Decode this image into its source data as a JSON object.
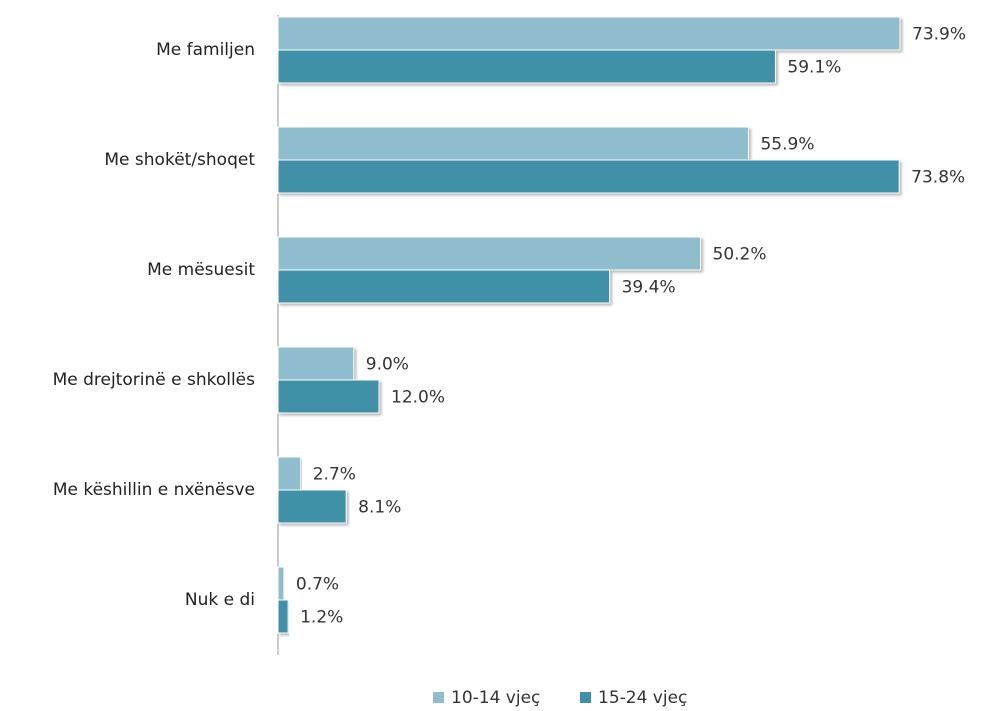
{
  "chart_data": {
    "type": "bar",
    "orientation": "horizontal",
    "categories": [
      "Me familjen",
      "Me shokët/shoqet",
      "Me mësuesit",
      "Me drejtorinë e shkollës",
      "Me këshillin e nxënësve",
      "Nuk e di"
    ],
    "series": [
      {
        "name": "10-14 vjeç",
        "color": "#8fbdcd",
        "values": [
          73.9,
          55.9,
          50.2,
          9.0,
          2.7,
          0.7
        ],
        "value_labels": [
          "73.9%",
          "55.9%",
          "50.2%",
          "9.0%",
          "2.7%",
          "0.7%"
        ]
      },
      {
        "name": "15-24 vjeç",
        "color": "#3f90a7",
        "values": [
          59.1,
          73.8,
          39.4,
          12.0,
          8.1,
          1.2
        ],
        "value_labels": [
          "59.1%",
          "73.8%",
          "39.4%",
          "12.0%",
          "8.1%",
          "1.2%"
        ]
      }
    ],
    "legend": "bottom"
  }
}
